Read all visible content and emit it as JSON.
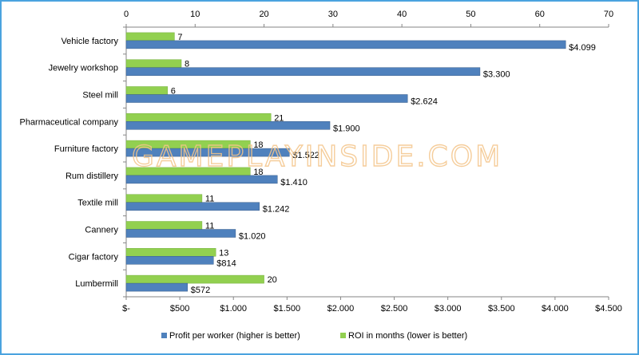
{
  "watermark": "GAMEPLAYINSIDE.COM",
  "chart_data": {
    "type": "bar",
    "orientation": "horizontal",
    "categories": [
      "Vehicle factory",
      "Jewelry workshop",
      "Steel mill",
      "Pharmaceutical company",
      "Furniture factory",
      "Rum distillery",
      "Textile mill",
      "Cannery",
      "Cigar factory",
      "Lumbermill"
    ],
    "series": [
      {
        "name": "Profit per worker (higher is better)",
        "axis": "bottom",
        "color": "#4f81bd",
        "values": [
          4099,
          3300,
          2624,
          1900,
          1522,
          1410,
          1242,
          1020,
          814,
          572
        ],
        "labels": [
          "$4.099",
          "$3.300",
          "$2.624",
          "$1.900",
          "$1.522",
          "$1.410",
          "$1.242",
          "$1.020",
          "$814",
          "$572"
        ]
      },
      {
        "name": "ROI in months (lower is better)",
        "axis": "top",
        "color": "#92d050",
        "values": [
          7,
          8,
          6,
          21,
          18,
          18,
          11,
          11,
          13,
          20
        ],
        "labels": [
          "7",
          "8",
          "6",
          "21",
          "18",
          "18",
          "11",
          "11",
          "13",
          "20"
        ]
      }
    ],
    "bottom_axis": {
      "range": [
        0,
        4500
      ],
      "ticks": [
        0,
        500,
        1000,
        1500,
        2000,
        2500,
        3000,
        3500,
        4000,
        4500
      ],
      "tick_labels": [
        "$-",
        "$500",
        "$1.000",
        "$1.500",
        "$2.000",
        "$2.500",
        "$3.000",
        "$3.500",
        "$4.000",
        "$4.500"
      ]
    },
    "top_axis": {
      "range": [
        0,
        70
      ],
      "ticks": [
        0,
        10,
        20,
        30,
        40,
        50,
        60,
        70
      ],
      "tick_labels": [
        "0",
        "10",
        "20",
        "30",
        "40",
        "50",
        "60",
        "70"
      ]
    },
    "legend_position": "bottom",
    "grid": false
  }
}
